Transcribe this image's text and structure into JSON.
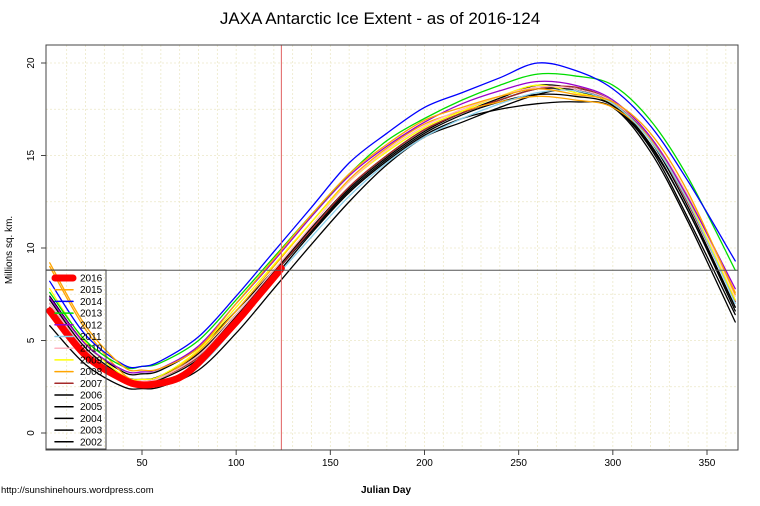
{
  "chart_data": {
    "type": "line",
    "title": "JAXA Antarctic Ice Extent - as of 2016-124",
    "xlabel": "Julian Day",
    "ylabel": "Millions sq. km.",
    "xlim": [
      1,
      365
    ],
    "ylim": [
      -0.5,
      21
    ],
    "xticks": [
      50,
      100,
      150,
      200,
      250,
      300,
      350
    ],
    "yticks": [
      0,
      5,
      10,
      15,
      20
    ],
    "grid": true,
    "legend_position": "bottom-left",
    "vertical_marker_day": 124,
    "horizontal_marker_value": 8.8,
    "vertical_marker_color": "#e06060",
    "series": [
      {
        "name": "2016",
        "color": "#ff0000",
        "width": 7,
        "x": [
          1,
          20,
          40,
          50,
          60,
          70,
          80,
          100,
          110,
          124
        ],
        "y": [
          6.6,
          4.2,
          2.9,
          2.6,
          2.7,
          3.0,
          3.8,
          6.0,
          7.2,
          8.9
        ]
      },
      {
        "name": "2015",
        "color": "#ffa500",
        "x": [
          1,
          20,
          40,
          50,
          60,
          80,
          100,
          120,
          140,
          160,
          180,
          200,
          220,
          240,
          260,
          280,
          300,
          320,
          340,
          365
        ],
        "y": [
          9.2,
          5.8,
          3.6,
          3.4,
          3.5,
          4.6,
          7.0,
          9.4,
          11.8,
          14.0,
          15.6,
          16.9,
          17.6,
          18.2,
          18.6,
          18.3,
          17.9,
          16.2,
          13.0,
          7.5
        ]
      },
      {
        "name": "2014",
        "color": "#0000ff",
        "x": [
          1,
          20,
          40,
          50,
          60,
          80,
          100,
          120,
          140,
          160,
          180,
          200,
          220,
          240,
          260,
          280,
          300,
          320,
          340,
          365
        ],
        "y": [
          8.2,
          5.3,
          3.7,
          3.6,
          3.9,
          5.2,
          7.4,
          9.8,
          12.2,
          14.6,
          16.2,
          17.6,
          18.4,
          19.2,
          20.0,
          19.6,
          18.6,
          16.6,
          13.6,
          9.3
        ]
      },
      {
        "name": "2013",
        "color": "#00dd00",
        "x": [
          1,
          20,
          40,
          50,
          60,
          80,
          100,
          120,
          140,
          160,
          180,
          200,
          220,
          240,
          260,
          280,
          300,
          320,
          340,
          365
        ],
        "y": [
          7.6,
          5.0,
          3.6,
          3.6,
          3.8,
          5.0,
          7.2,
          9.5,
          11.8,
          14.0,
          15.8,
          17.0,
          18.0,
          18.8,
          19.4,
          19.3,
          18.8,
          16.9,
          13.8,
          8.8
        ]
      },
      {
        "name": "2012",
        "color": "#9900cc",
        "x": [
          1,
          20,
          40,
          50,
          60,
          80,
          100,
          120,
          140,
          160,
          180,
          200,
          220,
          240,
          260,
          280,
          300,
          320,
          340,
          365
        ],
        "y": [
          7.3,
          4.8,
          3.4,
          3.3,
          3.5,
          4.7,
          7.0,
          9.3,
          11.7,
          13.9,
          15.5,
          16.8,
          17.8,
          18.5,
          19.0,
          18.8,
          18.0,
          16.0,
          12.7,
          7.8
        ]
      },
      {
        "name": "2011",
        "color": "#87ceeb",
        "x": [
          1,
          20,
          40,
          50,
          60,
          80,
          100,
          120,
          140,
          160,
          180,
          200,
          220,
          240,
          260,
          280,
          300,
          320,
          340,
          365
        ],
        "y": [
          6.6,
          4.3,
          2.8,
          2.5,
          2.6,
          3.6,
          5.8,
          8.3,
          10.6,
          12.8,
          14.6,
          16.0,
          17.0,
          17.8,
          18.4,
          18.5,
          17.8,
          15.8,
          12.5,
          7.0
        ]
      },
      {
        "name": "2010",
        "color": "#ffb6c1",
        "x": [
          1,
          20,
          40,
          50,
          60,
          80,
          100,
          120,
          140,
          160,
          180,
          200,
          220,
          240,
          260,
          280,
          300,
          320,
          340,
          365
        ],
        "y": [
          7.0,
          4.5,
          3.0,
          2.8,
          3.0,
          4.2,
          6.4,
          8.8,
          11.2,
          13.6,
          15.3,
          16.6,
          17.5,
          18.2,
          18.7,
          18.6,
          17.9,
          16.0,
          12.8,
          7.4
        ]
      },
      {
        "name": "2009",
        "color": "#ffff00",
        "x": [
          1,
          20,
          40,
          50,
          60,
          80,
          100,
          120,
          140,
          160,
          180,
          200,
          220,
          240,
          260,
          280,
          300,
          320,
          340,
          365
        ],
        "y": [
          7.8,
          4.9,
          3.1,
          2.9,
          3.1,
          4.5,
          6.8,
          9.1,
          11.4,
          13.6,
          15.2,
          16.5,
          17.4,
          18.2,
          18.8,
          18.4,
          17.8,
          15.8,
          12.6,
          7.2
        ]
      },
      {
        "name": "2008",
        "color": "#ffa500",
        "x": [
          1,
          20,
          40,
          50,
          60,
          80,
          100,
          120,
          140,
          160,
          180,
          200,
          220,
          240,
          260,
          280,
          300,
          320,
          340,
          365
        ],
        "y": [
          9.0,
          5.6,
          3.2,
          2.8,
          3.0,
          4.4,
          6.6,
          9.0,
          11.4,
          13.7,
          15.4,
          16.7,
          17.4,
          17.9,
          18.2,
          18.0,
          17.6,
          15.9,
          12.8,
          7.6
        ]
      },
      {
        "name": "2007",
        "color": "#a52a2a",
        "x": [
          1,
          20,
          40,
          50,
          60,
          80,
          100,
          120,
          140,
          160,
          180,
          200,
          220,
          240,
          260,
          280,
          300,
          320,
          340,
          365
        ],
        "y": [
          6.8,
          4.4,
          3.0,
          2.8,
          3.0,
          4.1,
          6.2,
          8.6,
          11.0,
          13.3,
          15.0,
          16.4,
          17.3,
          18.0,
          18.6,
          18.7,
          17.9,
          15.9,
          12.4,
          7.1
        ]
      },
      {
        "name": "2006",
        "color": "#000000",
        "x": [
          1,
          20,
          40,
          50,
          60,
          80,
          100,
          120,
          140,
          160,
          180,
          200,
          220,
          240,
          260,
          280,
          300,
          320,
          340,
          365
        ],
        "y": [
          7.4,
          4.8,
          3.3,
          3.2,
          3.4,
          4.6,
          6.6,
          8.8,
          11.1,
          13.3,
          15.0,
          16.4,
          17.3,
          18.1,
          18.8,
          18.6,
          17.8,
          15.6,
          12.0,
          6.8
        ]
      },
      {
        "name": "2005",
        "color": "#000000",
        "x": [
          1,
          20,
          40,
          50,
          60,
          80,
          100,
          120,
          140,
          160,
          180,
          200,
          220,
          240,
          260,
          280,
          300,
          320,
          340,
          365
        ],
        "y": [
          7.2,
          4.6,
          3.1,
          2.9,
          3.1,
          4.3,
          6.4,
          8.7,
          11.0,
          13.2,
          14.9,
          16.3,
          17.3,
          18.0,
          18.6,
          18.5,
          17.7,
          15.4,
          11.6,
          6.4
        ]
      },
      {
        "name": "2004",
        "color": "#000000",
        "x": [
          1,
          20,
          40,
          50,
          60,
          80,
          100,
          120,
          140,
          160,
          180,
          200,
          220,
          240,
          260,
          280,
          300,
          320,
          340,
          365
        ],
        "y": [
          7.0,
          4.5,
          3.0,
          2.8,
          3.0,
          4.2,
          6.3,
          8.6,
          10.9,
          13.1,
          14.8,
          16.2,
          17.2,
          17.9,
          18.3,
          18.2,
          17.7,
          15.5,
          12.0,
          6.6
        ]
      },
      {
        "name": "2003",
        "color": "#000000",
        "x": [
          1,
          20,
          40,
          50,
          60,
          80,
          100,
          120,
          140,
          160,
          180,
          200,
          220,
          240,
          260,
          280,
          300,
          320,
          340,
          365
        ],
        "y": [
          6.8,
          4.4,
          2.9,
          2.7,
          2.9,
          4.0,
          6.1,
          8.4,
          10.8,
          13.0,
          14.7,
          16.1,
          17.0,
          17.5,
          17.8,
          17.9,
          17.6,
          15.2,
          11.4,
          6.0
        ]
      },
      {
        "name": "2002",
        "color": "#000000",
        "x": [
          1,
          20,
          40,
          50,
          60,
          80,
          100,
          120,
          140,
          160,
          180,
          200,
          220,
          240,
          260,
          280,
          300,
          320,
          340,
          365
        ],
        "y": [
          5.8,
          3.7,
          2.5,
          2.4,
          2.5,
          3.4,
          5.4,
          7.8,
          10.2,
          12.5,
          14.5,
          16.0,
          16.8,
          17.6,
          18.3,
          18.6,
          17.9,
          15.8,
          12.2,
          6.8
        ]
      }
    ]
  },
  "footer": {
    "source": "http://sunshinehours.wordpress.com"
  }
}
